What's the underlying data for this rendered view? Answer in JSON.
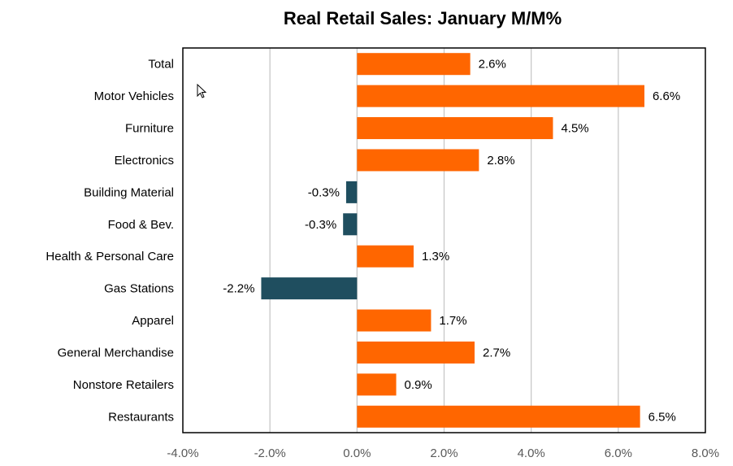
{
  "chart_data": {
    "type": "bar",
    "orientation": "horizontal",
    "title": "Real Retail Sales: January M/M%",
    "xlabel": "",
    "ylabel": "",
    "xlim": [
      -4,
      8
    ],
    "grid": true,
    "categories": [
      "Total",
      "Motor Vehicles",
      "Furniture",
      "Electronics",
      "Building Material",
      "Food & Bev.",
      "Health & Personal Care",
      "Gas Stations",
      "Apparel",
      "General Merchandise",
      "Nonstore Retailers",
      "Restaurants"
    ],
    "values": [
      2.6,
      6.6,
      4.5,
      2.8,
      -0.25,
      -0.32,
      1.3,
      -2.2,
      1.7,
      2.7,
      0.9,
      6.5
    ],
    "data_labels": [
      "2.6%",
      "6.6%",
      "4.5%",
      "2.8%",
      "-0.3%",
      "-0.3%",
      "1.3%",
      "-2.2%",
      "1.7%",
      "2.7%",
      "0.9%",
      "6.5%"
    ],
    "xticks": [
      -4,
      -2,
      0,
      2,
      4,
      6,
      8
    ],
    "xtick_labels": [
      "-4.0%",
      "-2.0%",
      "0.0%",
      "2.0%",
      "4.0%",
      "6.0%",
      "8.0%"
    ],
    "colors": {
      "positive": "#FF6600",
      "negative": "#1F4E5F"
    }
  }
}
